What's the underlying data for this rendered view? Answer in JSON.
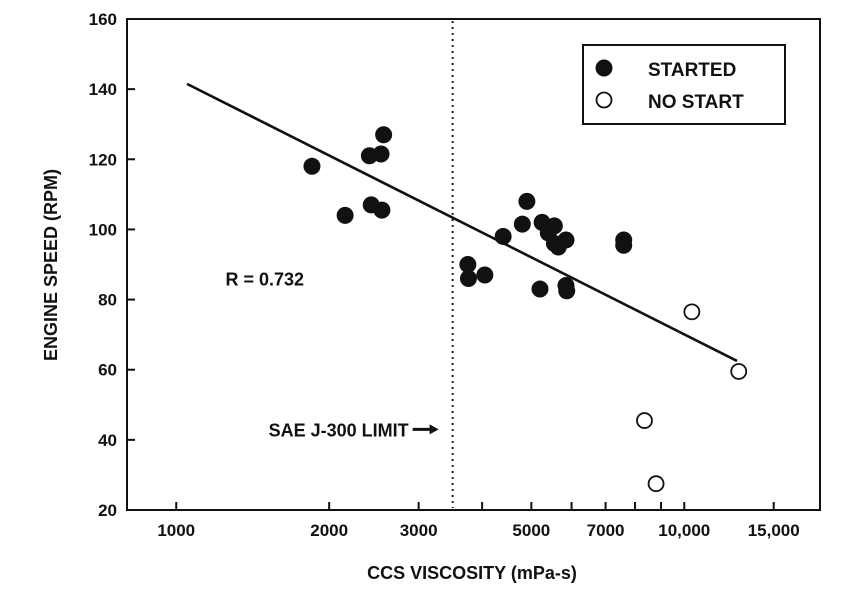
{
  "chart_data": {
    "type": "scatter",
    "title": "",
    "xlabel": "CCS VISCOSITY (mPa-s)",
    "ylabel": "ENGINE SPEED (RPM)",
    "x_scale": "log",
    "xlim": [
      800,
      18500
    ],
    "ylim": [
      20,
      160
    ],
    "x_ticks": [
      {
        "value": 1000,
        "label": "1000"
      },
      {
        "value": 2000,
        "label": "2000"
      },
      {
        "value": 3000,
        "label": "3000"
      },
      {
        "value": 5000,
        "label": "5000"
      },
      {
        "value": 7000,
        "label": "7000"
      },
      {
        "value": 10000,
        "label": "10,000"
      },
      {
        "value": 15000,
        "label": "15,000"
      }
    ],
    "y_ticks": [
      20,
      40,
      60,
      80,
      100,
      120,
      140,
      160
    ],
    "grid": false,
    "legend": {
      "position": "top-right",
      "entries": [
        {
          "name": "STARTED",
          "marker": "filled-circle"
        },
        {
          "name": "NO START",
          "marker": "open-circle"
        }
      ]
    },
    "series": [
      {
        "name": "STARTED",
        "marker": "filled",
        "points": [
          {
            "x": 1850,
            "y": 118
          },
          {
            "x": 2150,
            "y": 104
          },
          {
            "x": 2400,
            "y": 121
          },
          {
            "x": 2420,
            "y": 107
          },
          {
            "x": 2530,
            "y": 121.5
          },
          {
            "x": 2540,
            "y": 105.5
          },
          {
            "x": 2560,
            "y": 127
          },
          {
            "x": 3750,
            "y": 90
          },
          {
            "x": 3760,
            "y": 86
          },
          {
            "x": 4050,
            "y": 87
          },
          {
            "x": 4400,
            "y": 98
          },
          {
            "x": 4800,
            "y": 101.5
          },
          {
            "x": 4900,
            "y": 108
          },
          {
            "x": 5200,
            "y": 83
          },
          {
            "x": 5250,
            "y": 102
          },
          {
            "x": 5400,
            "y": 99
          },
          {
            "x": 5550,
            "y": 101
          },
          {
            "x": 5550,
            "y": 96
          },
          {
            "x": 5650,
            "y": 95
          },
          {
            "x": 5850,
            "y": 97
          },
          {
            "x": 5850,
            "y": 84
          },
          {
            "x": 5870,
            "y": 82.5
          },
          {
            "x": 7600,
            "y": 97
          },
          {
            "x": 7600,
            "y": 95.5
          }
        ]
      },
      {
        "name": "NO START",
        "marker": "open",
        "points": [
          {
            "x": 8350,
            "y": 45.5
          },
          {
            "x": 8800,
            "y": 27.5
          },
          {
            "x": 10350,
            "y": 76.5
          },
          {
            "x": 12800,
            "y": 59.5
          }
        ]
      }
    ],
    "regression_line": {
      "x": [
        1050,
        12700
      ],
      "y": [
        141.5,
        62.5
      ]
    },
    "annotations": [
      {
        "text": "R = 0.732",
        "x": 1250,
        "y": 84
      },
      {
        "text": "SAE J-300 LIMIT",
        "arrow_to_x": 3500,
        "y": 43
      }
    ],
    "reference_line": {
      "x": 3500,
      "style": "dotted"
    }
  }
}
